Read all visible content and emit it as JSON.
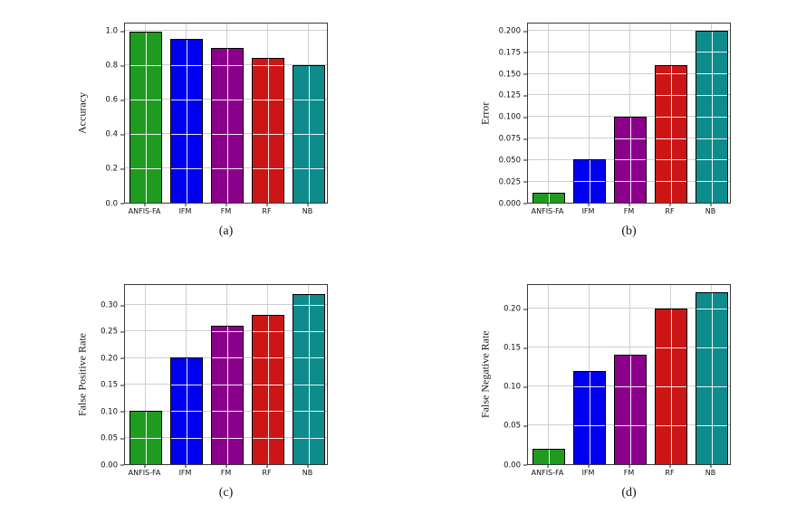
{
  "figure": {
    "bar_colors": [
      "#1f9c1f",
      "#0000f0",
      "#8b008b",
      "#cc1616",
      "#0e8b8b"
    ],
    "bar_edge_color": "#000000",
    "grid_color": "#cfcfcf",
    "inner_grid_color": "rgba(255,255,255,0.9)"
  },
  "chart_data": [
    {
      "id": "a",
      "type": "bar",
      "title": "",
      "xlabel": "",
      "ylabel": "Accuracy",
      "caption": "(a)",
      "categories": [
        "ANFIS-FA",
        "IFM",
        "FM",
        "RF",
        "NB"
      ],
      "values": [
        0.99,
        0.95,
        0.9,
        0.84,
        0.8
      ],
      "ytick_values": [
        0.0,
        0.2,
        0.4,
        0.6,
        0.8,
        1.0
      ],
      "ytick_labels": [
        "0.0",
        "0.2",
        "0.4",
        "0.6",
        "0.8",
        "1.0"
      ],
      "ylim": [
        0,
        1.05
      ],
      "grid": true,
      "legend": false
    },
    {
      "id": "b",
      "type": "bar",
      "title": "",
      "xlabel": "",
      "ylabel": "Error",
      "caption": "(b)",
      "categories": [
        "ANFIS-FA",
        "IFM",
        "FM",
        "RF",
        "NB"
      ],
      "values": [
        0.012,
        0.05,
        0.1,
        0.16,
        0.2
      ],
      "ytick_values": [
        0.0,
        0.025,
        0.05,
        0.075,
        0.1,
        0.125,
        0.15,
        0.175,
        0.2
      ],
      "ytick_labels": [
        "0.000",
        "0.025",
        "0.050",
        "0.075",
        "0.100",
        "0.125",
        "0.150",
        "0.175",
        "0.200"
      ],
      "ylim": [
        0,
        0.21
      ],
      "grid": true,
      "legend": false
    },
    {
      "id": "c",
      "type": "bar",
      "title": "",
      "xlabel": "",
      "ylabel": "False Positive Rate",
      "caption": "(c)",
      "categories": [
        "ANFIS-FA",
        "IFM",
        "FM",
        "RF",
        "NB"
      ],
      "values": [
        0.1,
        0.2,
        0.26,
        0.28,
        0.32
      ],
      "ytick_values": [
        0.0,
        0.05,
        0.1,
        0.15,
        0.2,
        0.25,
        0.3
      ],
      "ytick_labels": [
        "0.00",
        "0.05",
        "0.10",
        "0.15",
        "0.20",
        "0.25",
        "0.30"
      ],
      "ylim": [
        0,
        0.34
      ],
      "grid": true,
      "legend": false
    },
    {
      "id": "d",
      "type": "bar",
      "title": "",
      "xlabel": "",
      "ylabel": "False Negative Rate",
      "caption": "(d)",
      "categories": [
        "ANFIS-FA",
        "IFM",
        "FM",
        "RF",
        "NB"
      ],
      "values": [
        0.02,
        0.12,
        0.14,
        0.2,
        0.22
      ],
      "ytick_values": [
        0.0,
        0.05,
        0.1,
        0.15,
        0.2
      ],
      "ytick_labels": [
        "0.00",
        "0.05",
        "0.10",
        "0.15",
        "0.20"
      ],
      "ylim": [
        0,
        0.232
      ],
      "grid": true,
      "legend": false
    }
  ]
}
